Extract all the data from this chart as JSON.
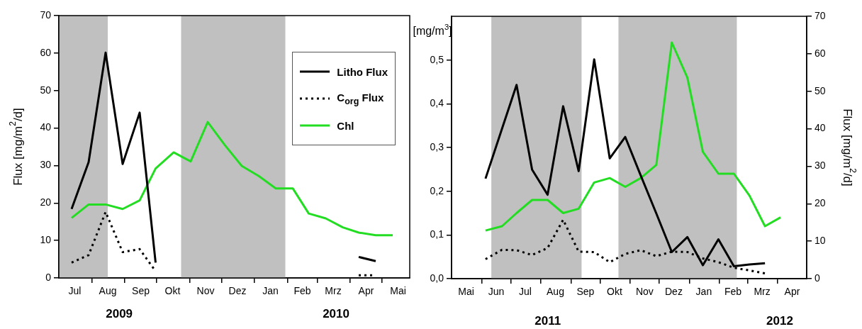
{
  "chart_data": [
    {
      "type": "line",
      "ylabel": "Flux [mg/m$^{2}$/d]",
      "x": [
        "2009-07-13",
        "2009-07-29",
        "2009-08-14",
        "2009-08-30",
        "2009-09-15",
        "2009-09-30",
        "2009-10-17",
        "2009-11-02",
        "2009-11-18",
        "2009-12-04",
        "2009-12-20",
        "2010-01-05",
        "2010-01-21",
        "2010-02-06",
        "2010-02-21",
        "2010-03-09",
        "2010-03-25",
        "2010-04-09",
        "2010-04-25",
        "2010-05-11"
      ],
      "series": [
        {
          "name": "Litho Flux",
          "color": "#000000",
          "line_style": "solid",
          "values": [
            18.4,
            30.9,
            60.1,
            30.4,
            44.1,
            4.1,
            null,
            null,
            null,
            null,
            null,
            null,
            null,
            null,
            null,
            null,
            null,
            5.6,
            4.5,
            null
          ]
        },
        {
          "name": "C$_{org}$ Flux",
          "color": "#000000",
          "line_style": "dotted",
          "values": [
            4.1,
            6.1,
            17.6,
            6.9,
            7.7,
            1.8,
            null,
            null,
            null,
            null,
            null,
            null,
            null,
            null,
            null,
            null,
            null,
            0.7,
            0.7,
            null
          ]
        },
        {
          "name": "Chl",
          "color": "#22dd22",
          "line_style": "solid",
          "values": [
            16,
            19.6,
            19.6,
            18.4,
            20.7,
            29.2,
            33.5,
            31.1,
            41.6,
            35.5,
            29.9,
            27.2,
            23.9,
            23.9,
            17.2,
            15.9,
            13.5,
            12.1,
            11.4,
            11.4
          ]
        }
      ],
      "xlim": [
        "2009-07-01",
        "2010-05-27"
      ],
      "xticks": [
        {
          "value": "2009-07-16",
          "label": "Jul"
        },
        {
          "value": "2009-08-01",
          "label": null
        },
        {
          "value": "2009-08-16",
          "label": "Aug"
        },
        {
          "value": "2009-09-01",
          "label": null
        },
        {
          "value": "2009-09-16",
          "label": "Sep"
        },
        {
          "value": "2009-10-01",
          "label": null
        },
        {
          "value": "2009-10-16",
          "label": "Okt"
        },
        {
          "value": "2009-11-01",
          "label": null
        },
        {
          "value": "2009-11-16",
          "label": "Nov"
        },
        {
          "value": "2009-12-01",
          "label": null
        },
        {
          "value": "2009-12-16",
          "label": "Dez"
        },
        {
          "value": "2010-01-01",
          "label": null
        },
        {
          "value": "2010-01-16",
          "label": "Jan"
        },
        {
          "value": "2010-02-01",
          "label": null
        },
        {
          "value": "2010-02-15",
          "label": "Feb"
        },
        {
          "value": "2010-03-01",
          "label": null
        },
        {
          "value": "2010-03-16",
          "label": "Mrz"
        },
        {
          "value": "2010-04-01",
          "label": null
        },
        {
          "value": "2010-04-16",
          "label": "Apr"
        },
        {
          "value": "2010-05-01",
          "label": null
        },
        {
          "value": "2010-05-16",
          "label": "Mai"
        }
      ],
      "ylim": [
        0,
        70
      ],
      "yticks": [
        0,
        10,
        20,
        30,
        40,
        50,
        60,
        70
      ],
      "bands": [
        {
          "axis": "x",
          "from": "2009-07-01",
          "to": "2009-08-16",
          "color": "#c0c0c0"
        },
        {
          "axis": "x",
          "from": "2009-10-24",
          "to": "2010-01-30",
          "color": "#c0c0c0"
        }
      ],
      "annotations": [
        "2009",
        "2010"
      ],
      "legend": "top right",
      "grid": false,
      "marker": "none"
    },
    {
      "type": "line",
      "ylabel": "[mg/m$^{3}$]",
      "y2label": "Flux [mg/m$^{2}$/d]",
      "x": [
        "2011-06-05",
        "2011-06-22",
        "2011-07-07",
        "2011-07-23",
        "2011-08-08",
        "2011-08-24",
        "2011-09-09",
        "2011-09-25",
        "2011-10-11",
        "2011-10-27",
        "2011-11-12",
        "2011-11-28",
        "2011-12-14",
        "2011-12-30",
        "2012-01-15",
        "2012-01-31",
        "2012-02-16",
        "2012-03-03",
        "2012-03-19",
        "2012-04-04"
      ],
      "series": [
        {
          "color": "#000000",
          "line_style": "solid",
          "axis": "y2",
          "values": [
            26.7,
            40.0,
            51.7,
            29.1,
            22.4,
            46.0,
            28.7,
            58.5,
            32.1,
            37.8,
            27.5,
            17.4,
            7.1,
            11.1,
            3.6,
            10.5,
            3.3,
            3.8,
            4.1,
            null
          ]
        },
        {
          "color": "#000000",
          "line_style": "dotted",
          "axis": "y2",
          "values": [
            5.2,
            7.7,
            7.6,
            6.3,
            8.2,
            15.7,
            7.2,
            7.1,
            4.4,
            6.6,
            7.6,
            6.0,
            7.2,
            7.1,
            5.4,
            4.4,
            2.9,
            2.2,
            1.4,
            null
          ]
        },
        {
          "color": "#22dd22",
          "line_style": "solid",
          "values": [
            0.11,
            0.12,
            0.15,
            0.18,
            0.18,
            0.15,
            0.16,
            0.22,
            0.23,
            0.21,
            0.23,
            0.26,
            0.54,
            0.46,
            0.29,
            0.24,
            0.24,
            0.19,
            0.12,
            0.14
          ]
        }
      ],
      "xlim": [
        "2011-05-01",
        "2012-05-01"
      ],
      "xticks": [
        {
          "value": "2011-05-16",
          "label": "Mai"
        },
        {
          "value": "2011-06-01",
          "label": null
        },
        {
          "value": "2011-06-16",
          "label": "Jun"
        },
        {
          "value": "2011-07-01",
          "label": null
        },
        {
          "value": "2011-07-16",
          "label": "Jul"
        },
        {
          "value": "2011-08-01",
          "label": null
        },
        {
          "value": "2011-08-16",
          "label": "Aug"
        },
        {
          "value": "2011-09-01",
          "label": null
        },
        {
          "value": "2011-09-16",
          "label": "Sep"
        },
        {
          "value": "2011-10-01",
          "label": null
        },
        {
          "value": "2011-10-16",
          "label": "Okt"
        },
        {
          "value": "2011-11-01",
          "label": null
        },
        {
          "value": "2011-11-16",
          "label": "Nov"
        },
        {
          "value": "2011-12-01",
          "label": null
        },
        {
          "value": "2011-12-16",
          "label": "Dez"
        },
        {
          "value": "2012-01-01",
          "label": null
        },
        {
          "value": "2012-01-16",
          "label": "Jan"
        },
        {
          "value": "2012-02-01",
          "label": null
        },
        {
          "value": "2012-02-15",
          "label": "Feb"
        },
        {
          "value": "2012-03-01",
          "label": null
        },
        {
          "value": "2012-03-16",
          "label": "Mrz"
        },
        {
          "value": "2012-04-01",
          "label": null
        },
        {
          "value": "2012-04-16",
          "label": "Apr"
        }
      ],
      "ylim": [
        0,
        0.6
      ],
      "yticks": [
        {
          "value": 0,
          "label": "0,0"
        },
        {
          "value": 0.1,
          "label": "0,1"
        },
        {
          "value": 0.2,
          "label": "0,2"
        },
        {
          "value": 0.3,
          "label": "0,3"
        },
        {
          "value": 0.4,
          "label": "0,4"
        },
        {
          "value": 0.5,
          "label": "0,5"
        }
      ],
      "y2lim": [
        0,
        70
      ],
      "y2ticks": [
        0,
        10,
        20,
        30,
        40,
        50,
        60,
        70
      ],
      "bands": [
        {
          "axis": "x",
          "from": "2011-06-11",
          "to": "2011-09-12",
          "color": "#c0c0c0"
        },
        {
          "axis": "x",
          "from": "2011-10-20",
          "to": "2012-02-19",
          "color": "#c0c0c0"
        }
      ],
      "annotations": [
        "2011",
        "2012"
      ],
      "grid": false,
      "marker": "none"
    }
  ]
}
